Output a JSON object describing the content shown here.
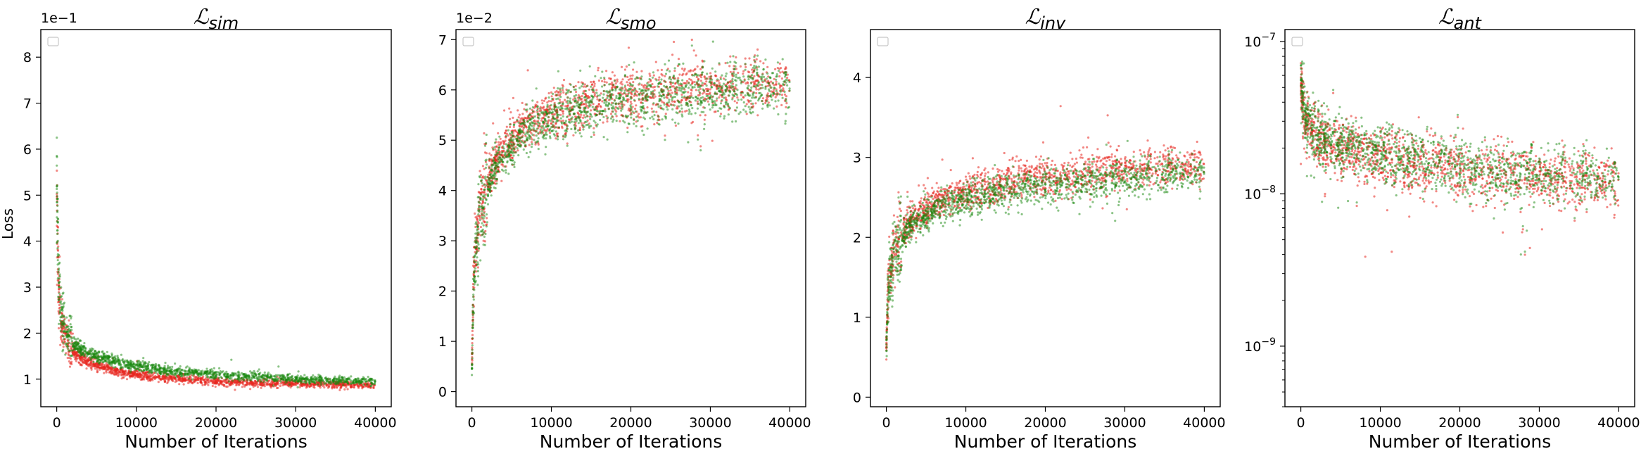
{
  "figure": {
    "ylabel": "Loss",
    "colors": {
      "red": "#e8261f",
      "green": "#17870e"
    }
  },
  "chart_data": [
    {
      "type": "scatter",
      "title_main": "ℒ",
      "title_sub": "sim",
      "xlabel": "Number of Iterations",
      "ylabel": "Loss",
      "y_offset_label": "1e−1",
      "xlim": [
        -2000,
        42000
      ],
      "ylim": [
        0.4,
        8.6
      ],
      "yscale": "linear",
      "xticks": [
        0,
        10000,
        20000,
        30000,
        40000
      ],
      "xtick_labels": [
        "0",
        "10000",
        "20000",
        "30000",
        "40000"
      ],
      "yticks": [
        1,
        2,
        3,
        4,
        5,
        6,
        7,
        8
      ],
      "ytick_labels": [
        "1",
        "2",
        "3",
        "4",
        "5",
        "6",
        "7",
        "8"
      ],
      "legend": "top-left (empty)",
      "grid": false,
      "series": [
        {
          "color": "red",
          "x": [
            0,
            200,
            500,
            1000,
            2000,
            3000,
            5000,
            8000,
            12000,
            16000,
            20000,
            25000,
            30000,
            35000,
            40000
          ],
          "y": [
            5.0,
            3.0,
            2.4,
            1.9,
            1.6,
            1.45,
            1.3,
            1.15,
            1.05,
            1.0,
            0.95,
            0.92,
            0.9,
            0.88,
            0.86
          ]
        },
        {
          "color": "green",
          "x": [
            0,
            200,
            500,
            1000,
            2000,
            3000,
            5000,
            8000,
            12000,
            16000,
            20000,
            25000,
            30000,
            35000,
            40000
          ],
          "y": [
            5.2,
            3.2,
            2.6,
            2.1,
            1.8,
            1.65,
            1.5,
            1.35,
            1.22,
            1.15,
            1.1,
            1.05,
            1.0,
            0.97,
            0.95
          ]
        }
      ]
    },
    {
      "type": "scatter",
      "title_main": "ℒ",
      "title_sub": "smo",
      "xlabel": "Number of Iterations",
      "ylabel": "",
      "y_offset_label": "1e−2",
      "xlim": [
        -2000,
        42000
      ],
      "ylim": [
        -0.3,
        7.2
      ],
      "yscale": "linear",
      "xticks": [
        0,
        10000,
        20000,
        30000,
        40000
      ],
      "xtick_labels": [
        "0",
        "10000",
        "20000",
        "30000",
        "40000"
      ],
      "yticks": [
        0,
        1,
        2,
        3,
        4,
        5,
        6,
        7
      ],
      "ytick_labels": [
        "0",
        "1",
        "2",
        "3",
        "4",
        "5",
        "6",
        "7"
      ],
      "legend": "top-left (empty)",
      "grid": false,
      "series": [
        {
          "color": "red",
          "x": [
            0,
            200,
            500,
            1000,
            2000,
            3000,
            5000,
            8000,
            12000,
            16000,
            20000,
            25000,
            30000,
            35000,
            40000
          ],
          "y": [
            0.5,
            2.2,
            2.9,
            3.6,
            4.2,
            4.6,
            5.0,
            5.4,
            5.6,
            5.8,
            5.9,
            6.0,
            6.05,
            6.1,
            6.15
          ]
        },
        {
          "color": "green",
          "x": [
            0,
            200,
            500,
            1000,
            2000,
            3000,
            5000,
            8000,
            12000,
            16000,
            20000,
            25000,
            30000,
            35000,
            40000
          ],
          "y": [
            0.4,
            2.0,
            2.8,
            3.5,
            4.1,
            4.5,
            4.9,
            5.3,
            5.55,
            5.7,
            5.8,
            5.9,
            5.95,
            6.0,
            6.0
          ]
        }
      ]
    },
    {
      "type": "scatter",
      "title_main": "ℒ",
      "title_sub": "inv",
      "xlabel": "Number of Iterations",
      "ylabel": "",
      "y_offset_label": "",
      "xlim": [
        -2000,
        42000
      ],
      "ylim": [
        -0.12,
        4.6
      ],
      "yscale": "linear",
      "xticks": [
        0,
        10000,
        20000,
        30000,
        40000
      ],
      "xtick_labels": [
        "0",
        "10000",
        "20000",
        "30000",
        "40000"
      ],
      "yticks": [
        0,
        1,
        2,
        3,
        4
      ],
      "ytick_labels": [
        "0",
        "1",
        "2",
        "3",
        "4"
      ],
      "legend": "top-left (empty)",
      "grid": false,
      "series": [
        {
          "color": "red",
          "x": [
            0,
            200,
            500,
            1000,
            2000,
            3000,
            5000,
            8000,
            12000,
            16000,
            20000,
            25000,
            30000,
            35000,
            40000
          ],
          "y": [
            0.6,
            1.3,
            1.6,
            1.85,
            2.05,
            2.2,
            2.35,
            2.5,
            2.6,
            2.7,
            2.75,
            2.8,
            2.85,
            2.9,
            2.9
          ]
        },
        {
          "color": "green",
          "x": [
            0,
            200,
            500,
            1000,
            2000,
            3000,
            5000,
            8000,
            12000,
            16000,
            20000,
            25000,
            30000,
            35000,
            40000
          ],
          "y": [
            0.6,
            1.25,
            1.55,
            1.8,
            2.0,
            2.15,
            2.28,
            2.42,
            2.52,
            2.6,
            2.65,
            2.7,
            2.74,
            2.77,
            2.8
          ]
        }
      ]
    },
    {
      "type": "scatter",
      "title_main": "ℒ",
      "title_sub": "ant",
      "xlabel": "Number of Iterations",
      "ylabel": "",
      "y_offset_label": "",
      "xlim": [
        -2000,
        42000
      ],
      "ylim": [
        4e-10,
        1.2e-07
      ],
      "yscale": "log",
      "xticks": [
        0,
        10000,
        20000,
        30000,
        40000
      ],
      "xtick_labels": [
        "0",
        "10000",
        "20000",
        "30000",
        "40000"
      ],
      "yticks": [
        1e-09,
        1e-08,
        1e-07
      ],
      "ytick_labels": [
        {
          "base": "10",
          "exp": "−9"
        },
        {
          "base": "10",
          "exp": "−8"
        },
        {
          "base": "10",
          "exp": "−7"
        }
      ],
      "legend": "top-left (empty)",
      "grid": false,
      "series": [
        {
          "color": "red",
          "x": [
            0,
            200,
            500,
            1000,
            2000,
            3000,
            5000,
            8000,
            12000,
            16000,
            20000,
            25000,
            30000,
            35000,
            40000
          ],
          "y": [
            5e-08,
            4e-08,
            3.2e-08,
            2.8e-08,
            2.4e-08,
            2.2e-08,
            2e-08,
            1.8e-08,
            1.65e-08,
            1.55e-08,
            1.45e-08,
            1.35e-08,
            1.3e-08,
            1.25e-08,
            1.2e-08
          ]
        },
        {
          "color": "green",
          "x": [
            0,
            200,
            500,
            1000,
            2000,
            3000,
            5000,
            8000,
            12000,
            16000,
            20000,
            25000,
            30000,
            35000,
            40000
          ],
          "y": [
            5.5e-08,
            4.2e-08,
            3.4e-08,
            2.9e-08,
            2.5e-08,
            2.3e-08,
            2.1e-08,
            1.9e-08,
            1.75e-08,
            1.6e-08,
            1.5e-08,
            1.42e-08,
            1.36e-08,
            1.3e-08,
            1.26e-08
          ]
        }
      ]
    }
  ]
}
